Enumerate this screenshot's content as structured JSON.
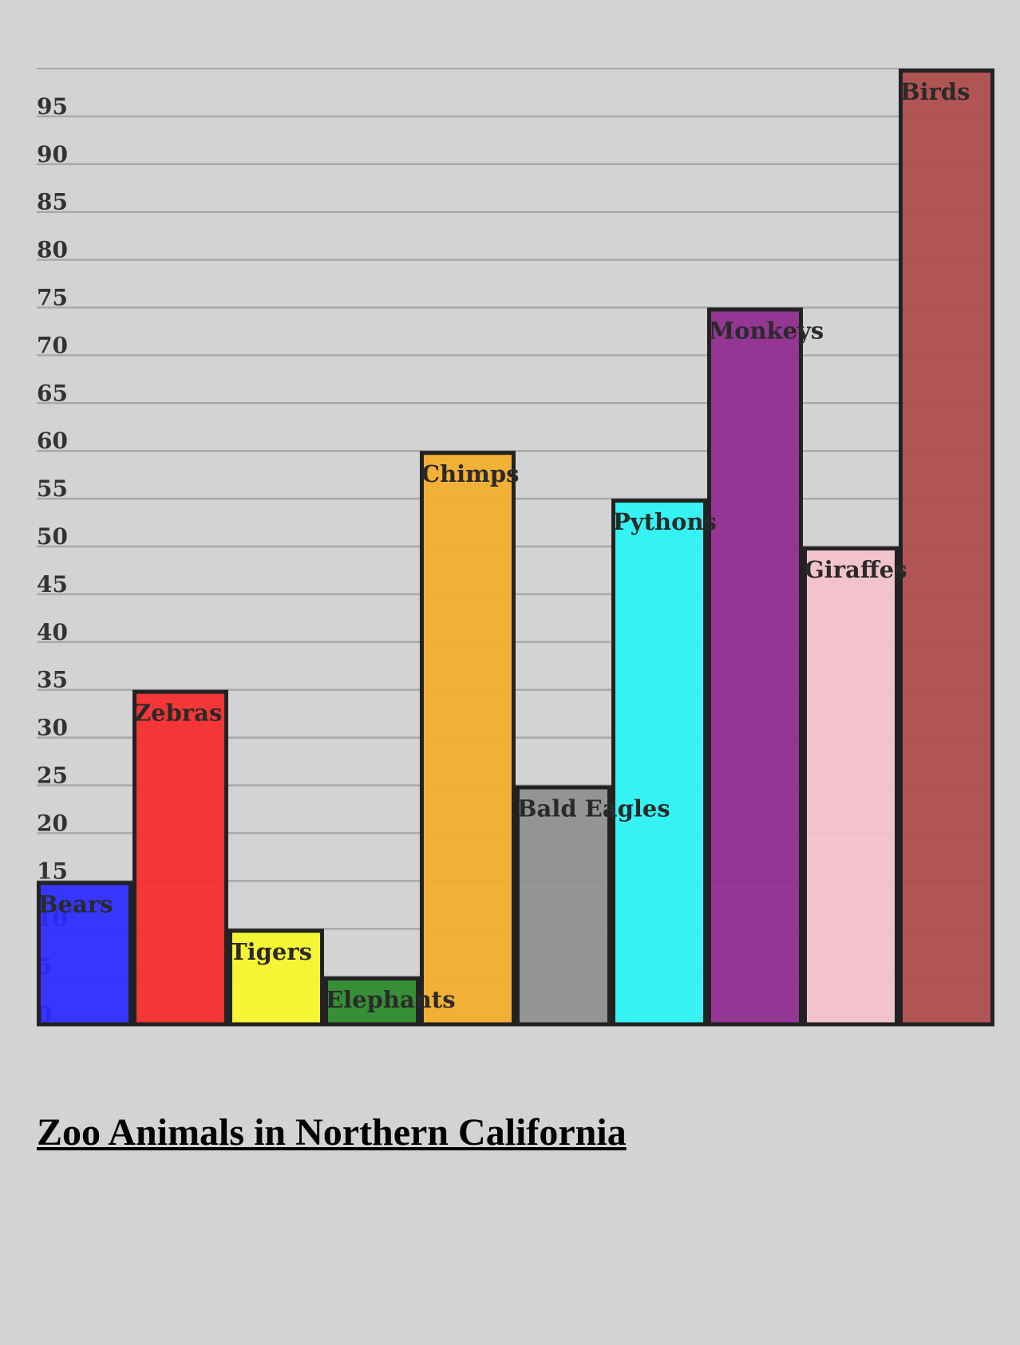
{
  "chart_data": {
    "type": "bar",
    "title": "Zoo Animals in Northern California",
    "categories": [
      "Bears",
      "Zebras",
      "Tigers",
      "Elephants",
      "Chimps",
      "Bald Eagles",
      "Pythons",
      "Monkeys",
      "Giraffes",
      "Birds"
    ],
    "values": [
      15,
      35,
      10,
      5,
      60,
      25,
      55,
      75,
      50,
      100
    ],
    "colors": [
      "#2a2aff",
      "#f72a2a",
      "#f7f72a",
      "#2a8a2a",
      "#f5ad2a",
      "#8f8f8f",
      "#2af5f5",
      "#8f2a8f",
      "#f5c2cc",
      "#ad4a4a"
    ],
    "xlabel": "",
    "ylabel": "",
    "ylim": [
      0,
      100
    ],
    "yticks": [
      0,
      5,
      10,
      15,
      20,
      25,
      30,
      35,
      40,
      45,
      50,
      55,
      60,
      65,
      70,
      75,
      80,
      85,
      90,
      95
    ],
    "grid": true,
    "legend": "none"
  }
}
